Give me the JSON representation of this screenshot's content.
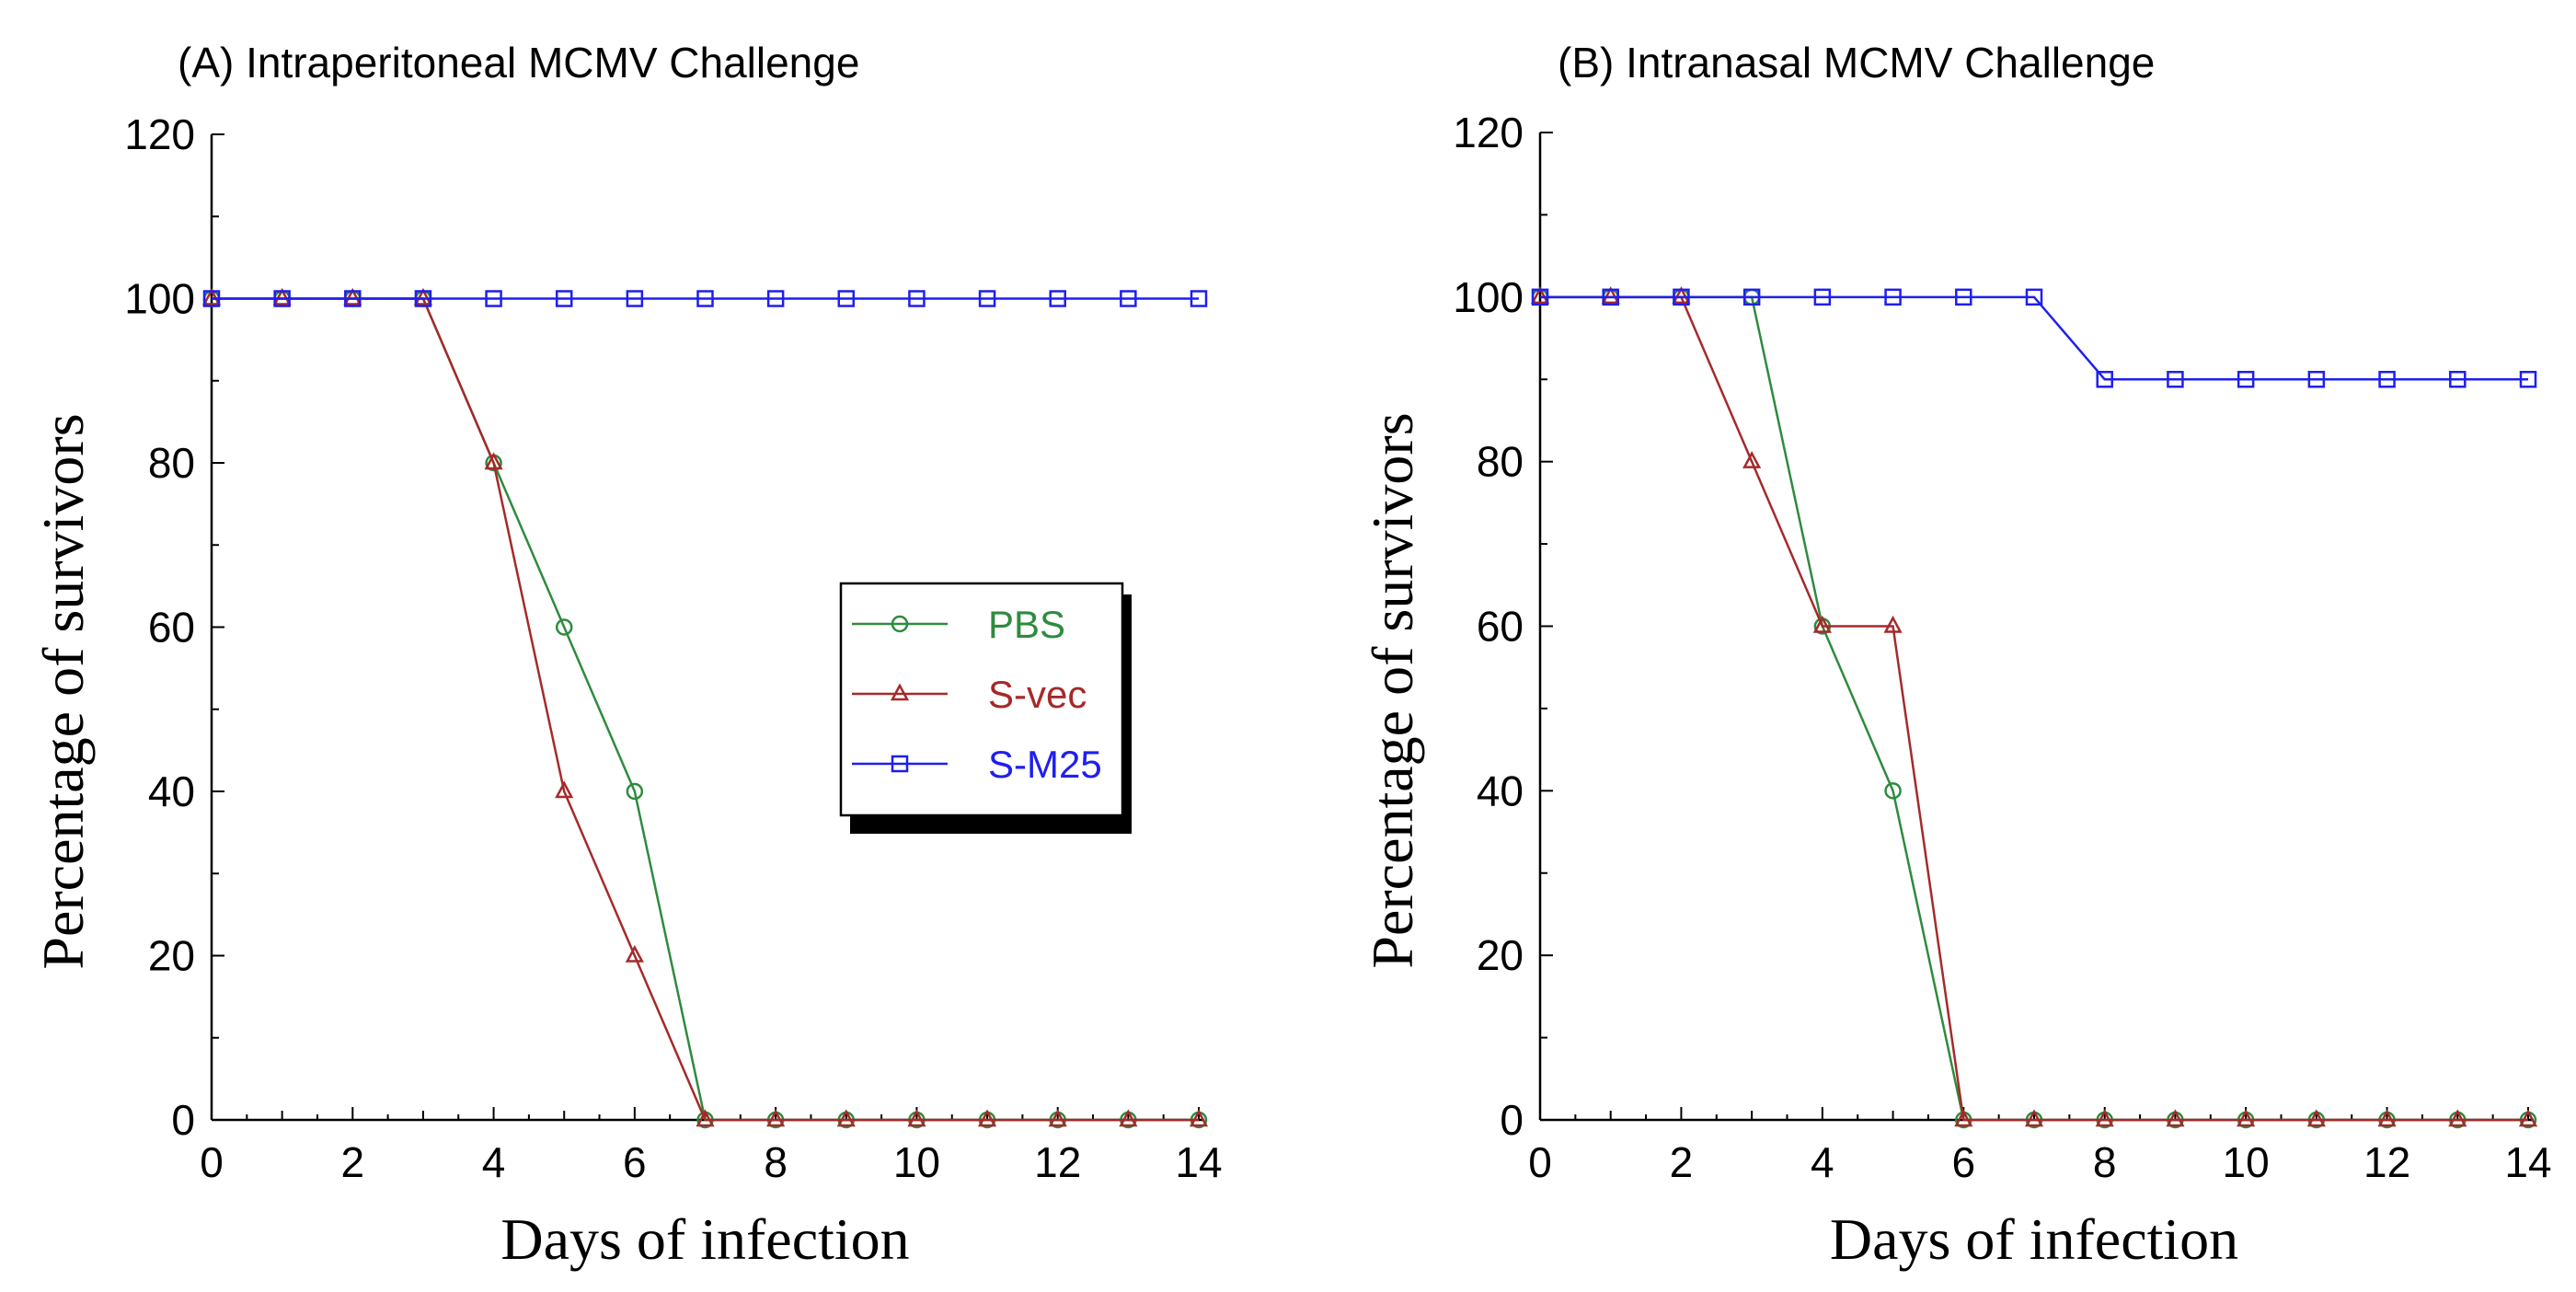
{
  "chart_data": [
    {
      "type": "line",
      "title": "(A) Intraperitoneal MCMV Challenge",
      "xlabel": "Days of infection",
      "ylabel": "Percentage of survivors",
      "xlim": [
        0,
        14
      ],
      "ylim": [
        0,
        120
      ],
      "xticks": [
        0,
        2,
        4,
        6,
        8,
        10,
        12,
        14
      ],
      "yticks": [
        0,
        20,
        40,
        60,
        80,
        100,
        120
      ],
      "x": [
        0,
        1,
        2,
        3,
        4,
        5,
        6,
        7,
        8,
        9,
        10,
        11,
        12,
        13,
        14
      ],
      "series": [
        {
          "name": "PBS",
          "color": "#2e8b3e",
          "marker": "circle",
          "values": [
            100,
            100,
            100,
            100,
            80,
            60,
            40,
            0,
            0,
            0,
            0,
            0,
            0,
            0,
            0
          ]
        },
        {
          "name": "S-vec",
          "color": "#a52a2a",
          "marker": "triangle",
          "values": [
            100,
            100,
            100,
            100,
            80,
            40,
            20,
            0,
            0,
            0,
            0,
            0,
            0,
            0,
            0
          ]
        },
        {
          "name": "S-M25",
          "color": "#1f1fef",
          "marker": "square",
          "values": [
            100,
            100,
            100,
            100,
            100,
            100,
            100,
            100,
            100,
            100,
            100,
            100,
            100,
            100,
            100
          ]
        }
      ],
      "legend": {
        "placement": "center-right",
        "entries": [
          "PBS",
          "S-vec",
          "S-M25"
        ]
      },
      "grid": false
    },
    {
      "type": "line",
      "title": "(B) Intranasal MCMV Challenge",
      "xlabel": "Days of infection",
      "ylabel": "Percentage of survivors",
      "xlim": [
        0,
        14
      ],
      "ylim": [
        0,
        120
      ],
      "xticks": [
        0,
        2,
        4,
        6,
        8,
        10,
        12,
        14
      ],
      "yticks": [
        0,
        20,
        40,
        60,
        80,
        100,
        120
      ],
      "x": [
        0,
        1,
        2,
        3,
        4,
        5,
        6,
        7,
        8,
        9,
        10,
        11,
        12,
        13,
        14
      ],
      "series": [
        {
          "name": "PBS",
          "color": "#2e8b3e",
          "marker": "circle",
          "values": [
            100,
            100,
            100,
            100,
            60,
            40,
            0,
            0,
            0,
            0,
            0,
            0,
            0,
            0,
            0
          ]
        },
        {
          "name": "S-vec",
          "color": "#a52a2a",
          "marker": "triangle",
          "values": [
            100,
            100,
            100,
            80,
            60,
            60,
            0,
            0,
            0,
            0,
            0,
            0,
            0,
            0,
            0
          ]
        },
        {
          "name": "S-M25",
          "color": "#1f1fef",
          "marker": "square",
          "values": [
            100,
            100,
            100,
            100,
            100,
            100,
            100,
            100,
            90,
            90,
            90,
            90,
            90,
            90,
            90
          ]
        }
      ],
      "grid": false
    }
  ]
}
